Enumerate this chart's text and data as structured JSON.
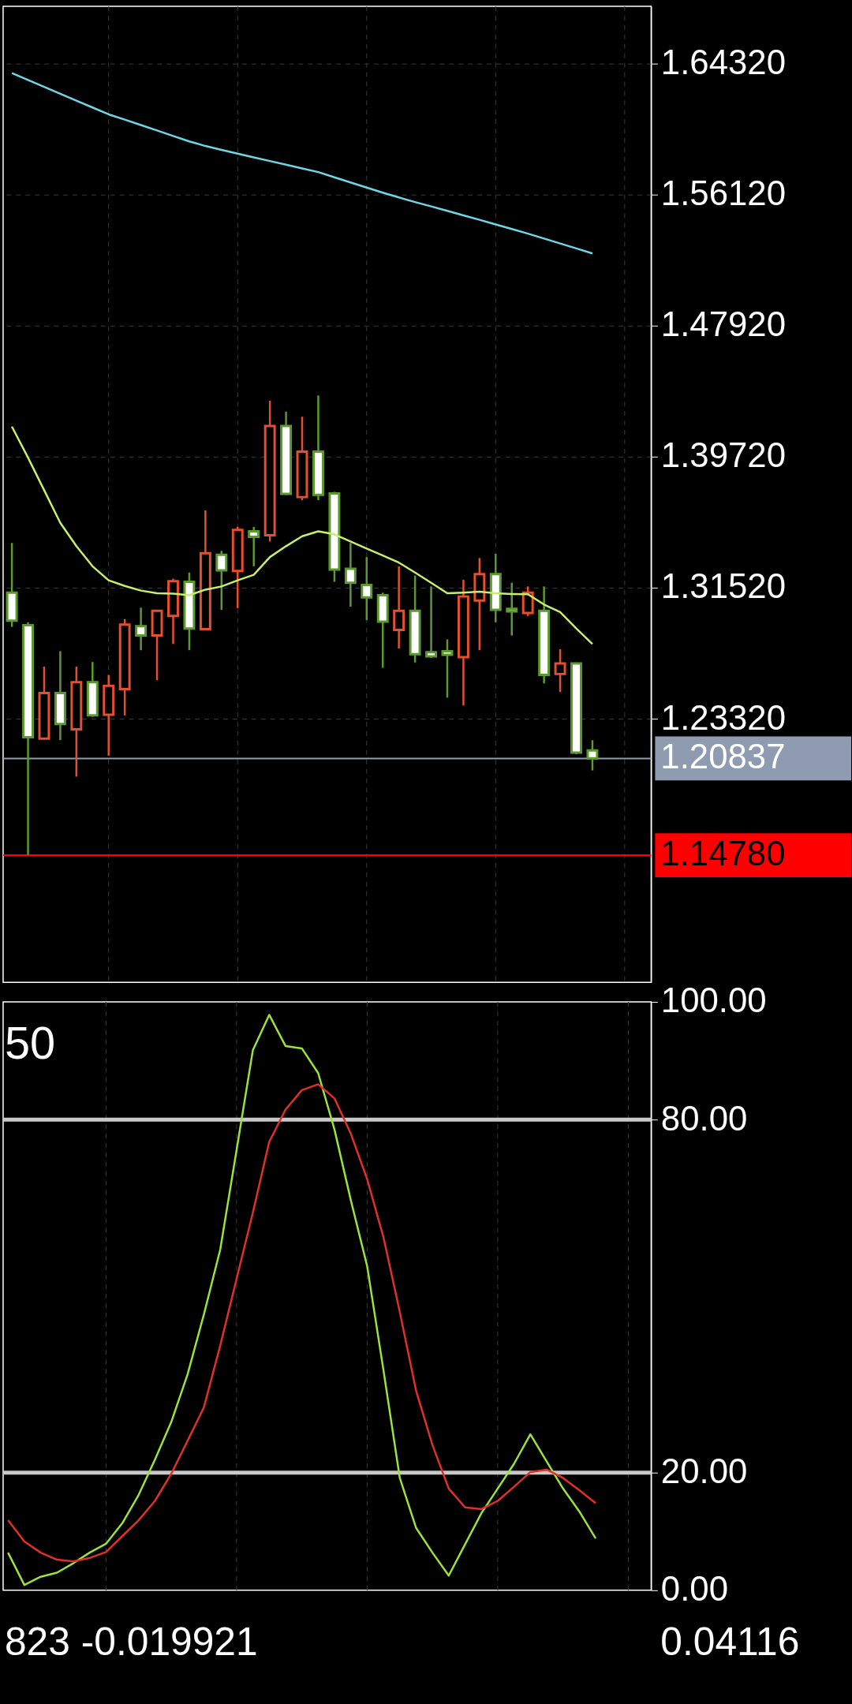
{
  "chart_data": [
    {
      "type": "candlestick",
      "categories": [
        null,
        null,
        null,
        null,
        null,
        null,
        null,
        null,
        null,
        null,
        null,
        null,
        null,
        null,
        null,
        null,
        null,
        null,
        null,
        null,
        null,
        null,
        null,
        null,
        null,
        null,
        null,
        null,
        null,
        null,
        null,
        null,
        null,
        null,
        null,
        null,
        null
      ],
      "ohlc": [
        [
          1.3121,
          1.3432,
          1.2907,
          1.2946
        ],
        [
          1.2917,
          1.2936,
          1.148,
          1.2217
        ],
        [
          1.2208,
          1.2658,
          1.2204,
          1.2493
        ],
        [
          1.2493,
          1.2755,
          1.2198,
          1.2299
        ],
        [
          1.2266,
          1.2658,
          1.197,
          1.2561
        ],
        [
          1.2561,
          1.2687,
          1.2344,
          1.2353
        ],
        [
          1.2357,
          1.2606,
          1.2101,
          1.2538
        ],
        [
          1.2518,
          1.2956,
          1.2353,
          1.2921
        ],
        [
          1.2911,
          1.3027,
          1.2761,
          1.2853
        ],
        [
          1.2853,
          1.3014,
          1.2573,
          1.3008
        ],
        [
          1.2975,
          1.3208,
          1.28,
          1.3193
        ],
        [
          1.3189,
          1.3247,
          1.2761,
          1.2897
        ],
        [
          1.2893,
          1.3636,
          1.2888,
          1.3368
        ],
        [
          1.3358,
          1.3383,
          1.3014,
          1.3261
        ],
        [
          1.3257,
          1.3533,
          1.3024,
          1.3513
        ],
        [
          1.3505,
          1.3533,
          1.3286,
          1.347
        ],
        [
          1.348,
          1.4322,
          1.3441,
          1.4164
        ],
        [
          1.4164,
          1.4254,
          1.3733,
          1.3739
        ],
        [
          1.3719,
          1.4222,
          1.37,
          1.4003
        ],
        [
          1.4003,
          1.4355,
          1.37,
          1.3733
        ],
        [
          1.3742,
          1.3752,
          1.3189,
          1.3266
        ],
        [
          1.327,
          1.3432,
          1.3033,
          1.3183
        ],
        [
          1.3169,
          1.3344,
          1.295,
          1.3092
        ],
        [
          1.3105,
          1.3121,
          1.2651,
          1.294
        ],
        [
          1.2888,
          1.3286,
          1.2771,
          1.3008
        ],
        [
          1.3008,
          1.3228,
          1.2684,
          1.2736
        ],
        [
          1.2748,
          1.316,
          1.2713,
          1.2722
        ],
        [
          1.2755,
          1.2829,
          1.2464,
          1.2732
        ],
        [
          1.2717,
          1.3202,
          1.2415,
          1.3097
        ],
        [
          1.3072,
          1.3338,
          1.2761,
          1.3237
        ],
        [
          1.3237,
          1.3364,
          1.2936,
          1.3014
        ],
        [
          1.302,
          1.3183,
          1.2853,
          1.3004
        ],
        [
          1.2994,
          1.316,
          1.2975,
          1.3121
        ],
        [
          1.3008,
          1.316,
          1.2553,
          1.2606
        ],
        [
          1.2612,
          1.2767,
          1.2499,
          1.2678
        ],
        [
          1.2678,
          1.2684,
          1.211,
          1.212
        ],
        [
          1.2134,
          1.2198,
          1.2009,
          1.2084
        ]
      ],
      "colors": [
        "#5c9a2f",
        "#5c9a2f",
        "#e4502f",
        "#5c9a2f",
        "#e4502f",
        "#5c9a2f",
        "#e4502f",
        "#e4502f",
        "#5c9a2f",
        "#e4502f",
        "#e4502f",
        "#5c9a2f",
        "#e4502f",
        "#5c9a2f",
        "#e4502f",
        "#5c9a2f",
        "#e4502f",
        "#5c9a2f",
        "#e4502f",
        "#5c9a2f",
        "#5c9a2f",
        "#5c9a2f",
        "#5c9a2f",
        "#5c9a2f",
        "#e4502f",
        "#5c9a2f",
        "#5c9a2f",
        "#5c9a2f",
        "#e4502f",
        "#e4502f",
        "#5c9a2f",
        "#5c9a2f",
        "#e4502f",
        "#5c9a2f",
        "#e4502f",
        "#5c9a2f",
        "#5c9a2f"
      ],
      "series": [
        {
          "type": "line",
          "color": "#c6f06a",
          "values": [
            1.416,
            1.3966,
            1.3762,
            1.3558,
            1.3412,
            1.3286,
            1.3198,
            1.3163,
            1.3134,
            1.3117,
            1.3115,
            1.3105,
            1.314,
            1.316,
            1.3198,
            1.3233,
            1.3344,
            1.3412,
            1.3474,
            1.3505,
            1.3486,
            1.3441,
            1.3397,
            1.3354,
            1.3309,
            1.3247,
            1.3183,
            1.3117,
            1.3121,
            1.3127,
            1.3117,
            1.3113,
            1.3111,
            1.3047,
            1.3,
            1.2897,
            1.28
          ]
        },
        {
          "type": "line",
          "color": "#6fd6e6",
          "values": [
            1.6372,
            1.6329,
            1.6286,
            1.6243,
            1.62,
            1.6157,
            1.6114,
            1.6081,
            1.6047,
            1.6013,
            1.5979,
            1.5945,
            1.5916,
            1.5892,
            1.5868,
            1.5845,
            1.5822,
            1.5799,
            1.5776,
            1.5753,
            1.572,
            1.5688,
            1.5656,
            1.5624,
            1.5594,
            1.5565,
            1.5538,
            1.551,
            1.5482,
            1.5454,
            1.5425,
            1.5397,
            1.5368,
            1.5337,
            1.5306,
            1.5275,
            1.5244
          ]
        }
      ],
      "ylim": [
        1.0683,
        1.679
      ],
      "yticks": [
        {
          "value": 1.6432,
          "label": "1.64320"
        },
        {
          "value": 1.5612,
          "label": "1.56120"
        },
        {
          "value": 1.4792,
          "label": "1.47920"
        },
        {
          "value": 1.3972,
          "label": "1.39720"
        },
        {
          "value": 1.3152,
          "label": "1.31520"
        },
        {
          "value": 1.2332,
          "label": "1.23320"
        }
      ],
      "ref_lines": [
        {
          "axis": "y",
          "value": 1.20837,
          "label": "1.20837",
          "color": "#8f9bb0"
        },
        {
          "axis": "y",
          "value": 1.1478,
          "label": "1.14780",
          "color": "#ff0000"
        }
      ],
      "grid": true,
      "tick_labels": "y"
    },
    {
      "type": "line",
      "categories": [
        null,
        null,
        null,
        null,
        null,
        null,
        null,
        null,
        null,
        null,
        null,
        null,
        null,
        null,
        null,
        null,
        null,
        null,
        null,
        null,
        null,
        null,
        null,
        null,
        null,
        null,
        null,
        null,
        null,
        null,
        null,
        null,
        null,
        null,
        null,
        null,
        null
      ],
      "series": [
        {
          "color": "#9be33a",
          "values": [
            6.4,
            0.9,
            2.3,
            3.0,
            4.6,
            6.4,
            7.9,
            11.4,
            16.2,
            22.2,
            28.6,
            36.7,
            46.9,
            57.9,
            74.8,
            91.8,
            97.8,
            92.5,
            92.1,
            87.9,
            78.3,
            66.3,
            55.1,
            37.4,
            19.1,
            10.6,
            6.4,
            2.5,
            7.8,
            13.1,
            17.3,
            21.5,
            26.5,
            21.9,
            17.3,
            13.4,
            8.8
          ]
        },
        {
          "color": "#e0302a",
          "values": [
            11.9,
            8.3,
            6.4,
            5.2,
            4.9,
            5.5,
            6.5,
            9.2,
            11.9,
            15.2,
            19.8,
            25.4,
            31.1,
            41.6,
            52.9,
            64.2,
            76.2,
            81.7,
            85.0,
            86.0,
            83.6,
            77.6,
            69.9,
            60.0,
            47.3,
            33.9,
            24.7,
            17.3,
            14.1,
            13.8,
            15.2,
            17.6,
            20.1,
            20.5,
            19.1,
            17.0,
            14.8
          ]
        }
      ],
      "ylim": [
        0,
        100
      ],
      "yticks": [
        {
          "value": 0,
          "label": "0.00"
        },
        {
          "value": 20,
          "label": "20.00"
        },
        {
          "value": 80,
          "label": "80.00"
        },
        {
          "value": 100,
          "label": "100.00"
        }
      ],
      "ref_lines": [
        {
          "axis": "y",
          "value": 80,
          "color": "#c8c8c8"
        },
        {
          "axis": "y",
          "value": 20,
          "color": "#c8c8c8"
        }
      ],
      "annotations": [
        "50",
        "823 -0.019921",
        "0.04116"
      ],
      "grid": "x",
      "tick_labels": "y"
    }
  ]
}
